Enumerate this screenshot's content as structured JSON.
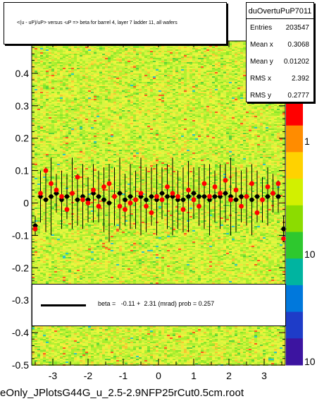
{
  "chart_data": {
    "type": "scatter",
    "title": "<(u - uP)/uP> versus -uP => beta for barrel 4, layer 7 ladder 11, all wafers",
    "xlim": [
      -3.6,
      3.6
    ],
    "ylim": [
      -0.5,
      0.5
    ],
    "x_ticks": [
      "-3",
      "-2",
      "-1",
      "0",
      "1",
      "2",
      "3"
    ],
    "y_ticks": [
      "-0.5",
      "-0.4",
      "-0.3",
      "-0.2",
      "-0.1",
      "0",
      "0.1",
      "0.2",
      "0.3",
      "0.4"
    ],
    "z_ticks": [
      "1",
      "10",
      "10"
    ],
    "grid": false,
    "background_histogram": "2D color map, mostly yellow-green with scattered red/blue cells",
    "colors": {
      "red_markers": "#ff0000",
      "black_markers": "#000000",
      "fit_line": "#000000"
    },
    "series": [
      {
        "name": "red profile",
        "x": [
          -3.5,
          -3.35,
          -3.2,
          -3.05,
          -2.9,
          -2.75,
          -2.6,
          -2.45,
          -2.3,
          -2.15,
          -2.0,
          -1.85,
          -1.7,
          -1.55,
          -1.4,
          -1.25,
          -1.1,
          -0.95,
          -0.8,
          -0.65,
          -0.5,
          -0.35,
          -0.2,
          -0.05,
          0.1,
          0.25,
          0.4,
          0.55,
          0.7,
          0.85,
          1.0,
          1.15,
          1.3,
          1.45,
          1.6,
          1.75,
          1.9,
          2.05,
          2.2,
          2.35,
          2.5,
          2.65,
          2.8,
          2.95,
          3.1,
          3.25,
          3.4,
          3.55
        ],
        "y": [
          -0.08,
          0.03,
          0.1,
          0.06,
          0.04,
          0.02,
          -0.02,
          0.03,
          0.08,
          0.01,
          0.0,
          0.04,
          -0.01,
          0.05,
          0.06,
          0.02,
          -0.01,
          -0.02,
          0.0,
          0.01,
          0.03,
          -0.01,
          -0.03,
          0.02,
          0.01,
          0.05,
          0.03,
          0.02,
          -0.02,
          0.04,
          0.01,
          -0.01,
          0.06,
          0.02,
          0.05,
          0.03,
          0.07,
          0.01,
          0.04,
          -0.01,
          0.02,
          0.06,
          -0.03,
          0.01,
          0.05,
          0.03,
          0.06,
          -0.11
        ]
      },
      {
        "name": "black profile",
        "x": [
          -3.5,
          -3.35,
          -3.2,
          -3.05,
          -2.9,
          -2.75,
          -2.6,
          -2.45,
          -2.3,
          -2.15,
          -2.0,
          -1.85,
          -1.7,
          -1.55,
          -1.4,
          -1.25,
          -1.1,
          -0.95,
          -0.8,
          -0.65,
          -0.5,
          -0.35,
          -0.2,
          -0.05,
          0.1,
          0.25,
          0.4,
          0.55,
          0.7,
          0.85,
          1.0,
          1.15,
          1.3,
          1.45,
          1.6,
          1.75,
          1.9,
          2.05,
          2.2,
          2.35,
          2.5,
          2.65,
          2.8,
          2.95,
          3.1,
          3.25,
          3.4,
          3.55
        ],
        "y": [
          -0.07,
          0.02,
          0.01,
          0.02,
          0.03,
          0.01,
          0.02,
          0.03,
          0.01,
          0.02,
          0.01,
          0.03,
          0.02,
          0.01,
          0.0,
          0.02,
          0.03,
          0.01,
          0.02,
          0.01,
          0.02,
          0.01,
          0.02,
          0.01,
          0.03,
          0.02,
          0.02,
          0.01,
          0.01,
          0.02,
          0.03,
          0.02,
          0.02,
          0.01,
          0.02,
          0.02,
          0.03,
          0.02,
          0.01,
          0.02,
          0.02,
          0.01,
          0.02,
          0.01,
          0.02,
          0.03,
          0.02,
          -0.08
        ],
        "err": [
          0.03,
          0.08,
          0.1,
          0.12,
          0.06,
          0.09,
          0.07,
          0.11,
          0.08,
          0.1,
          0.07,
          0.09,
          0.08,
          0.1,
          0.12,
          0.09,
          0.11,
          0.08,
          0.1,
          0.09,
          0.12,
          0.1,
          0.09,
          0.11,
          0.08,
          0.1,
          0.12,
          0.09,
          0.1,
          0.11,
          0.08,
          0.09,
          0.1,
          0.11,
          0.08,
          0.1,
          0.09,
          0.12,
          0.1,
          0.08,
          0.09,
          0.11,
          0.08,
          0.07,
          0.09,
          0.06,
          0.05,
          0.04
        ]
      }
    ],
    "fit": {
      "beta": -0.11,
      "error": 2.31,
      "prob": 0.257
    }
  },
  "stats": {
    "name": "duOvertuPuP7011",
    "rows": [
      {
        "key": "Entries",
        "value": "203547"
      },
      {
        "key": "Mean x",
        "value": "0.3068"
      },
      {
        "key": "Mean y",
        "value": "0.01202"
      },
      {
        "key": "RMS x",
        "value": "2.392"
      },
      {
        "key": "RMS y",
        "value": "0.2777"
      }
    ]
  },
  "legend": {
    "fit_label": "beta =   -0.11 +  2.31 (mrad) prob = 0.257"
  },
  "footer": {
    "text": "eOnly_JPlotsG44G_u_2.5-2.9NFP25rCut0.5cm.root"
  }
}
